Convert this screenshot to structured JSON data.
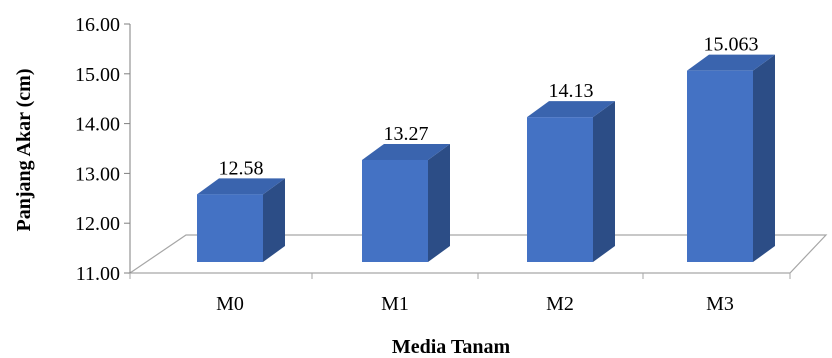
{
  "chart_data": {
    "type": "bar",
    "title": "",
    "xlabel": "Media Tanam",
    "ylabel": "Panjang Akar (cm)",
    "categories": [
      "M0",
      "M1",
      "M2",
      "M3"
    ],
    "series": [
      {
        "values": [
          12.58,
          13.27,
          14.13,
          15.063
        ]
      }
    ],
    "value_labels": [
      "12.58",
      "13.27",
      "14.13",
      "15.063"
    ],
    "ylim": [
      11.0,
      16.0
    ],
    "yticks": [
      11.0,
      12.0,
      13.0,
      14.0,
      15.0,
      16.0
    ],
    "ytick_labels": [
      "11.00",
      "12.00",
      "13.00",
      "14.00",
      "15.00",
      "16.00"
    ],
    "grid": false,
    "legend": "none",
    "style": "3d-column",
    "colors": {
      "bar_front": "#4472C4",
      "bar_top": "#3A64AE",
      "bar_side": "#2C4D86",
      "floor_line": "#A6A6A6",
      "axis": "#7F7F7F"
    }
  }
}
